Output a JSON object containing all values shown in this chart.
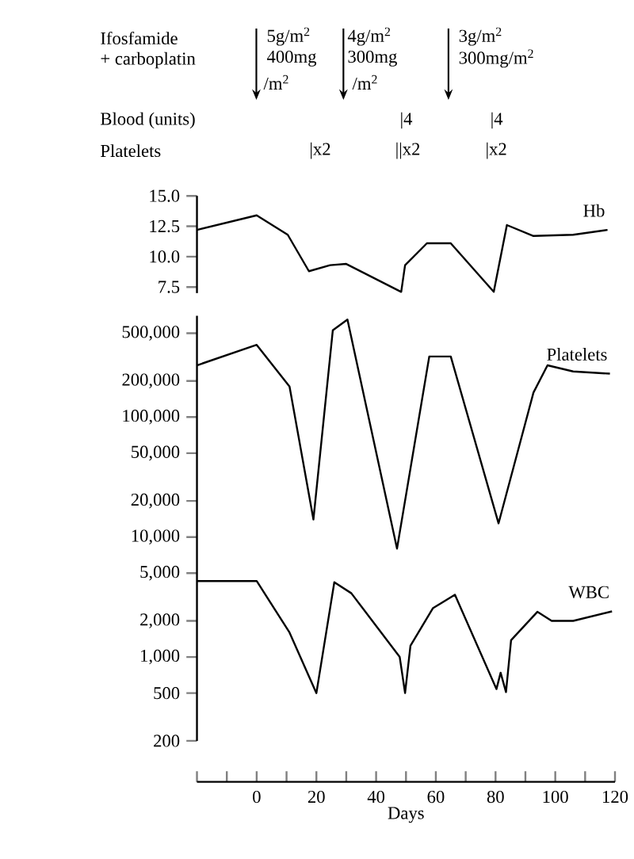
{
  "chart_data": [
    {
      "type": "line",
      "xlim": [
        -20,
        120
      ],
      "ylim": [
        7,
        15
      ],
      "tick_labels": "y",
      "legend": false,
      "marker": "none",
      "line_style": "solid",
      "yticks": [
        {
          "value": 7.5,
          "label": "7.5"
        },
        {
          "value": 10,
          "label": "10.0"
        },
        {
          "value": 12.5,
          "label": "12.5"
        },
        {
          "value": 15,
          "label": "15.0"
        }
      ],
      "annotations": [
        "Ifosfamide",
        "+ carboplatin",
        "5g/m$^{2}$",
        "400mg",
        "/m$^{2}$",
        "4g/m$^{2}$",
        "300mg",
        "/m$^{2}$",
        "3g/m$^{2}$",
        "300mg/m$^{2}$",
        "Blood (units)",
        "|4",
        "|4",
        "Platelets",
        "|x2",
        "||x2",
        "|x2"
      ],
      "series": [
        {
          "name": "Hb",
          "color": "#000000",
          "x": [
            -20,
            0,
            10.4,
            17.5,
            24.6,
            30,
            48.4,
            49.7,
            57,
            65,
            79.4,
            83.8,
            92.7,
            106,
            117.5
          ],
          "values": [
            12.2,
            13.4,
            11.8,
            8.8,
            9.3,
            9.4,
            7.1,
            9.3,
            11.1,
            11.1,
            7.1,
            12.6,
            11.7,
            11.8,
            12.2
          ]
        }
      ]
    },
    {
      "type": "line",
      "xlim": [
        -20,
        120
      ],
      "ylim": [
        91,
        700000
      ],
      "log": "y",
      "legend": false,
      "marker": "none",
      "line_style": "solid",
      "xlabel": "Days",
      "xticks": [
        {
          "value": -20,
          "label": null
        },
        {
          "value": -10,
          "label": null
        },
        0,
        {
          "value": 10,
          "label": null
        },
        20,
        {
          "value": 30,
          "label": null
        },
        40,
        {
          "value": 50,
          "label": null
        },
        60,
        {
          "value": 70,
          "label": null
        },
        80,
        {
          "value": 90,
          "label": null
        },
        100,
        {
          "value": 110,
          "label": null
        },
        120
      ],
      "yticks": [
        {
          "value": 200,
          "label": "200"
        },
        {
          "value": 500,
          "label": "500"
        },
        {
          "value": 1000,
          "label": "1,000"
        },
        {
          "value": 2000,
          "label": "2,000"
        },
        {
          "value": 5000,
          "label": "5,000"
        },
        {
          "value": 10000,
          "label": "10,000"
        },
        {
          "value": 20000,
          "label": "20,000"
        },
        {
          "value": 50000,
          "label": "50,000"
        },
        {
          "value": 100000,
          "label": "100,000"
        },
        {
          "value": 200000,
          "label": "200,000"
        },
        {
          "value": 500000,
          "label": "500,000"
        }
      ],
      "series": [
        {
          "name": "Platelets",
          "color": "#000000",
          "x": [
            -20,
            0,
            11,
            19,
            25.5,
            30.4,
            47,
            57.8,
            65,
            81,
            92.7,
            97.4,
            106,
            118.3
          ],
          "values": [
            270000,
            400000,
            180000,
            14000,
            530000,
            650000,
            8000,
            320000,
            320000,
            13000,
            160000,
            270000,
            240000,
            230000
          ]
        },
        {
          "name": "WBC",
          "color": "#000000",
          "x": [
            -20,
            0,
            11,
            20,
            26,
            31.7,
            47.9,
            49.7,
            51.5,
            59,
            66.4,
            80.3,
            81.7,
            83.5,
            85.2,
            94,
            98.8,
            106,
            119
          ],
          "values": [
            4300,
            4300,
            1600,
            500,
            4200,
            3400,
            1000,
            500,
            1240,
            2550,
            3300,
            540,
            740,
            510,
            1380,
            2380,
            2000,
            2000,
            2400
          ]
        }
      ]
    }
  ]
}
